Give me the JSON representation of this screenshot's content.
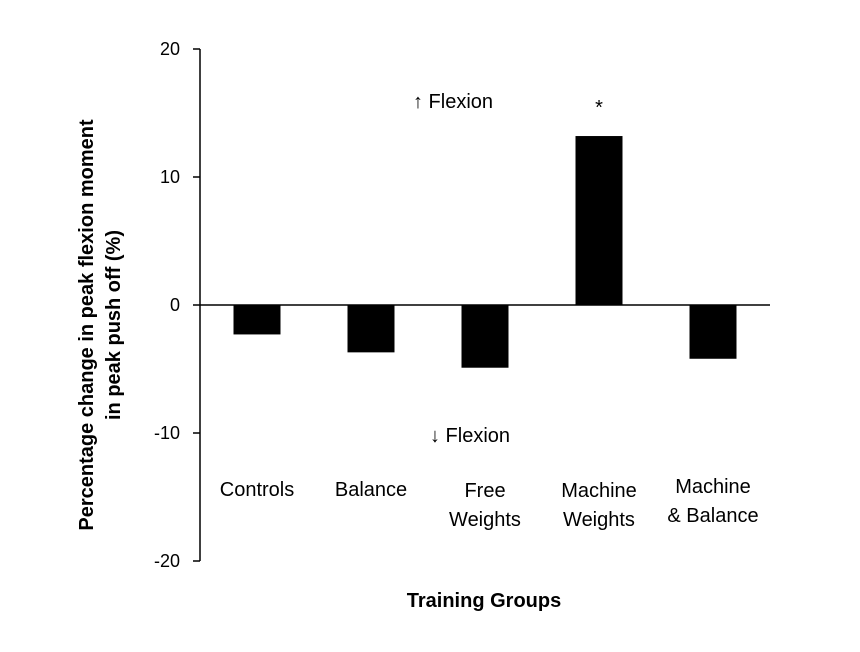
{
  "chart_data": {
    "type": "bar",
    "categories": [
      [
        "Controls"
      ],
      [
        "Balance"
      ],
      [
        "Free",
        "Weights"
      ],
      [
        "Machine",
        "Weights"
      ],
      [
        "Machine",
        "& Balance"
      ]
    ],
    "values": [
      -2.3,
      -3.7,
      -4.9,
      13.2,
      -4.2
    ],
    "ylabel": [
      "Percentage change in peak flexion moment",
      "in peak push off (%)"
    ],
    "xlabel": "Training Groups",
    "ylim": [
      -20,
      20
    ],
    "yticks": [
      20,
      10,
      0,
      -10,
      -20
    ],
    "annotations": {
      "up": "↑ Flexion",
      "down": "↓ Flexion",
      "significance": "*"
    },
    "bar_color": "#000000"
  }
}
